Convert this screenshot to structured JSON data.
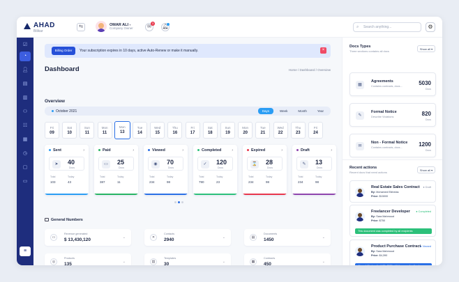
{
  "app": {
    "brand": "AHAD",
    "sub": "Bilikar"
  },
  "user": {
    "name": "OMAR ALI",
    "role": "Company Owner",
    "notif_count": "3"
  },
  "search": {
    "placeholder": "Search anything..."
  },
  "notice": {
    "button": "Billing Order",
    "text": "Your subscription expires in 10 days, active Auto-Renew or make it manually."
  },
  "dashboard": {
    "title": "Dashboard",
    "breadcrumb": "Home  /  Dashboard  /  Overview",
    "overview_title": "Overview",
    "period": "October 2021",
    "period_tabs": [
      "Days",
      "Week",
      "Month",
      "Year"
    ]
  },
  "days": [
    {
      "name": "Fri",
      "num": "09"
    },
    {
      "name": "Sat",
      "num": "10"
    },
    {
      "name": "Sun",
      "num": "11"
    },
    {
      "name": "Mon",
      "num": "11"
    },
    {
      "name": "Mon",
      "num": "13"
    },
    {
      "name": "Tue",
      "num": "14"
    },
    {
      "name": "Wed",
      "num": "15"
    },
    {
      "name": "Thu",
      "num": "16"
    },
    {
      "name": "Fri",
      "num": "17"
    },
    {
      "name": "Sat",
      "num": "18"
    },
    {
      "name": "Sun",
      "num": "19"
    },
    {
      "name": "Mon",
      "num": "20"
    },
    {
      "name": "Tue",
      "num": "21"
    },
    {
      "name": "Wed",
      "num": "22"
    },
    {
      "name": "Thu",
      "num": "23"
    },
    {
      "name": "Fri",
      "num": "24"
    }
  ],
  "stat_cards": [
    {
      "title": "Sent",
      "value": "40",
      "unit": "Docs",
      "total_label": "Total",
      "total": "103",
      "today_label": "Today",
      "today": "43",
      "color": "#2a9df4",
      "icon": "send-icon"
    },
    {
      "title": "Paid",
      "value": "25",
      "unit": "Docs",
      "total_label": "Total",
      "total": "387",
      "today_label": "Today",
      "today": "11",
      "color": "#28b463",
      "icon": "card-icon"
    },
    {
      "title": "Viewed",
      "value": "70",
      "unit": "Docs",
      "total_label": "Total",
      "total": "234",
      "today_label": "Today",
      "today": "98",
      "color": "#2a6fe6",
      "icon": "eye-icon"
    },
    {
      "title": "Completed",
      "value": "120",
      "unit": "Docs",
      "total_label": "Total",
      "total": "790",
      "today_label": "Today",
      "today": "23",
      "color": "#2cc07a",
      "icon": "check-doc-icon"
    },
    {
      "title": "Expired",
      "value": "28",
      "unit": "Docs",
      "total_label": "Total",
      "total": "234",
      "today_label": "Today",
      "today": "98",
      "color": "#e8364b",
      "icon": "expired-icon"
    },
    {
      "title": "Draft",
      "value": "13",
      "unit": "Docs",
      "total_label": "Total",
      "total": "234",
      "today_label": "Today",
      "today": "98",
      "color": "#8e44ad",
      "icon": "draft-icon"
    }
  ],
  "general": {
    "title": "General Numbers",
    "items": [
      {
        "label": "Revenue generated",
        "value": "$ 13,430,120",
        "icon": "wallet-icon"
      },
      {
        "label": "Contacts",
        "value": "2940",
        "icon": "contacts-icon"
      },
      {
        "label": "Documents",
        "value": "1450",
        "icon": "documents-icon"
      },
      {
        "label": "Products",
        "value": "135",
        "icon": "products-icon"
      },
      {
        "label": "Templates",
        "value": "30",
        "icon": "templates-icon"
      },
      {
        "label": "Contracts",
        "value": "450",
        "icon": "contracts-icon"
      }
    ]
  },
  "doc_types": {
    "title": "Docs Types",
    "subtitle": "Three sections contains all docs",
    "show_all": "Show all",
    "items": [
      {
        "title": "Agreements",
        "desc": "Contains contracts, docs...",
        "value": "5030",
        "unit": "Docs"
      },
      {
        "title": "Formal Notice",
        "desc": "Describe Violations",
        "value": "820",
        "unit": "Docs"
      },
      {
        "title": "Non - Formal Notice",
        "desc": "Contains contracts, docs...",
        "value": "1200",
        "unit": "Docs"
      }
    ]
  },
  "recent": {
    "title": "Recent actions",
    "subtitle": "Recent docs that need actions",
    "show_all": "Show all",
    "items": [
      {
        "title": "Real Estate Sales Contract",
        "status": "Draft",
        "status_color": "#8a93a8",
        "by_label": "By:",
        "by": "Mohamed Elkhelas",
        "price_label": "Price:",
        "price": "$15000"
      },
      {
        "title": "Freelancer Developer",
        "status": "Completed",
        "status_color": "#2cc07a",
        "by_label": "By:",
        "by": "Sara Mahmoud",
        "price_label": "Price:",
        "price": "$750",
        "bar": "This document was completed by all recipients",
        "bar_color": "#2cc07a"
      },
      {
        "title": "Product Purchase Contract",
        "status": "Viewed",
        "status_color": "#2a6fe6",
        "by_label": "By:",
        "by": "Sara Mahmoud",
        "price_label": "Price:",
        "price": "$4,390",
        "bar": "Ahmed Ali view April 20, 2021 - Write some feedbacks",
        "bar_color": "#2a6fe6"
      }
    ]
  }
}
